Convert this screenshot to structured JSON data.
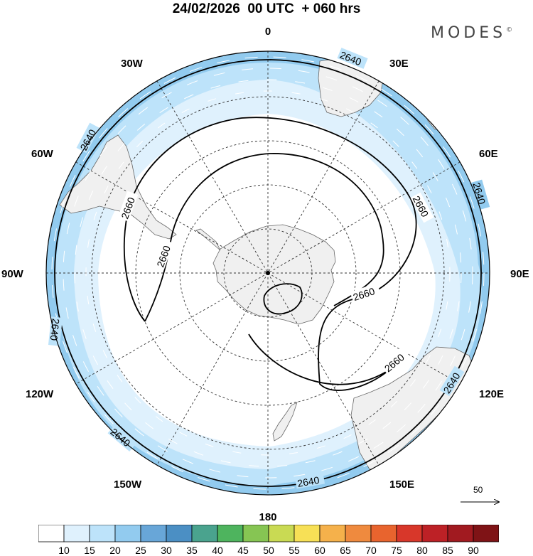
{
  "title": "24/02/2026  00 UTC  + 060 hrs",
  "brand": {
    "name": "MODES",
    "mark": "©"
  },
  "longitude_labels": {
    "top": "0",
    "bottom": "180",
    "left": "90W",
    "right": "90E",
    "w30": "30W",
    "w60": "60W",
    "w120": "120W",
    "w150": "150W",
    "e30": "30E",
    "e60": "60E",
    "e120": "120E",
    "e150": "150E"
  },
  "contours": {
    "outer_value": "2640",
    "inner_value": "2660"
  },
  "reference_vector": {
    "label": "50"
  },
  "colorbar": {
    "ticks": [
      "10",
      "15",
      "20",
      "25",
      "30",
      "35",
      "40",
      "45",
      "50",
      "55",
      "60",
      "65",
      "70",
      "75",
      "80",
      "85",
      "90"
    ],
    "colors": [
      "#ffffff",
      "#dff1fd",
      "#bde3fa",
      "#92cbef",
      "#68a6d8",
      "#4b8fc4",
      "#4aa38e",
      "#4eb45e",
      "#86c553",
      "#c9da53",
      "#f7e056",
      "#f5b14b",
      "#ef8a3e",
      "#e8642e",
      "#d8372a",
      "#bd2126",
      "#a11a20",
      "#7f1316"
    ],
    "colors_note": "colour of each band"
  },
  "colors": {
    "land": "#f0f0f0",
    "coast": "#666666",
    "wind_band_light": "#dff1fd",
    "wind_band_mid": "#bde3fa",
    "wind_band_strong": "#92cbef"
  }
}
